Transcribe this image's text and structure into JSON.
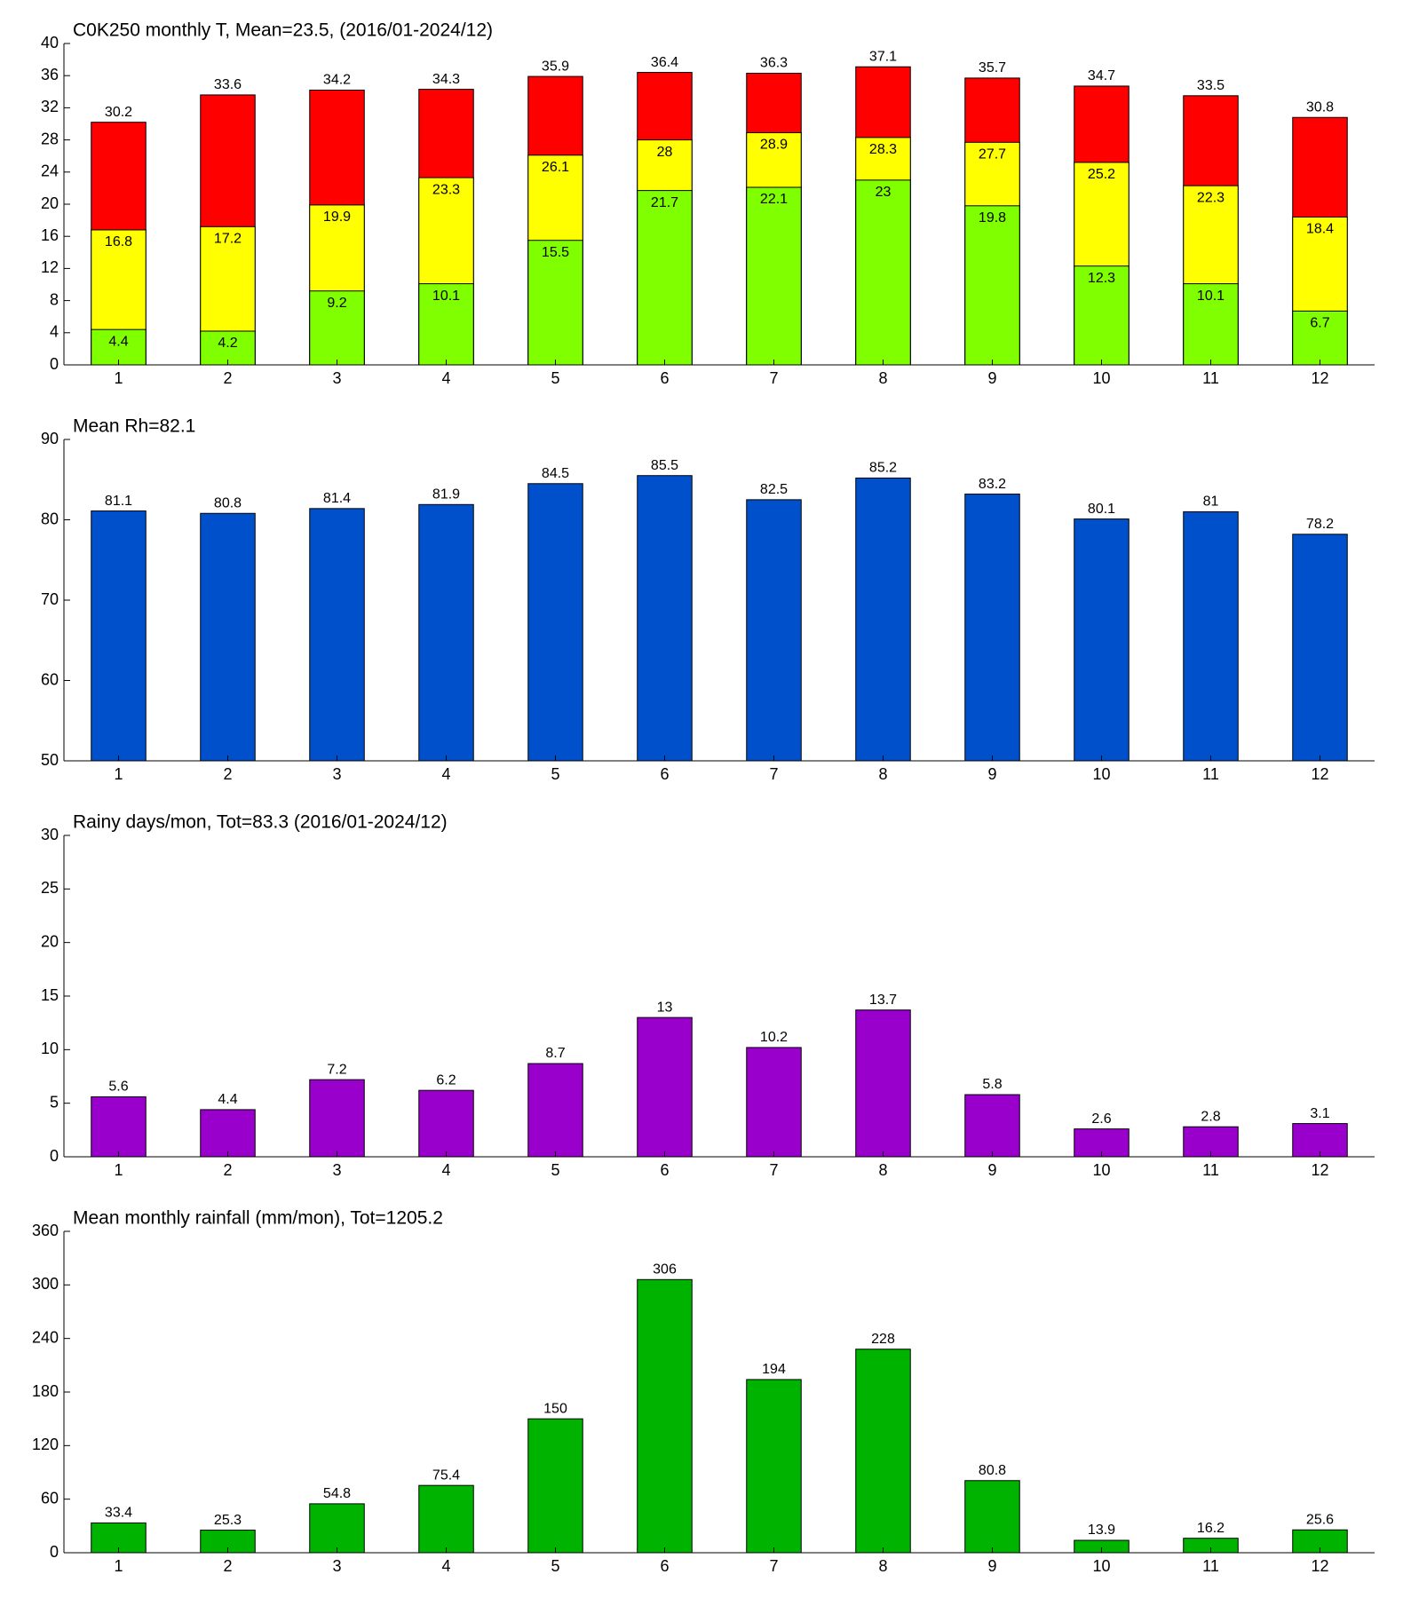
{
  "chart_data": [
    {
      "type": "bar",
      "title": "C0K250 monthly T, Mean=23.5, (2016/01-2024/12)",
      "categories": [
        1,
        2,
        3,
        4,
        5,
        6,
        7,
        8,
        9,
        10,
        11,
        12
      ],
      "series": [
        {
          "color": "#ff0000",
          "values": [
            30.2,
            33.6,
            34.2,
            34.3,
            35.9,
            36.4,
            36.3,
            37.1,
            35.7,
            34.7,
            33.5,
            30.8
          ]
        },
        {
          "color": "#ffff00",
          "values": [
            16.8,
            17.2,
            19.9,
            23.3,
            26.1,
            28,
            28.9,
            28.3,
            27.7,
            25.2,
            22.3,
            18.4
          ]
        },
        {
          "color": "#80ff00",
          "values": [
            4.4,
            4.2,
            9.2,
            10.1,
            15.5,
            21.7,
            22.1,
            23,
            19.8,
            12.3,
            10.1,
            6.7
          ]
        }
      ],
      "ylim": [
        0,
        40
      ],
      "yticks": [
        0,
        4,
        8,
        12,
        16,
        20,
        24,
        28,
        32,
        36,
        40
      ]
    },
    {
      "type": "bar",
      "title": "Mean Rh=82.1",
      "categories": [
        1,
        2,
        3,
        4,
        5,
        6,
        7,
        8,
        9,
        10,
        11,
        12
      ],
      "series": [
        {
          "color": "#0050cc",
          "values": [
            81.1,
            80.8,
            81.4,
            81.9,
            84.5,
            85.5,
            82.5,
            85.2,
            83.2,
            80.1,
            81,
            78.2
          ]
        }
      ],
      "ylim": [
        50,
        90
      ],
      "yticks": [
        50,
        60,
        70,
        80,
        90
      ]
    },
    {
      "type": "bar",
      "title": "Rainy days/mon, Tot=83.3 (2016/01-2024/12)",
      "categories": [
        1,
        2,
        3,
        4,
        5,
        6,
        7,
        8,
        9,
        10,
        11,
        12
      ],
      "series": [
        {
          "color": "#9900cc",
          "values": [
            5.6,
            4.4,
            7.2,
            6.2,
            8.7,
            13,
            10.2,
            13.7,
            5.8,
            2.6,
            2.8,
            3.1
          ]
        }
      ],
      "ylim": [
        0,
        30
      ],
      "yticks": [
        0,
        5,
        10,
        15,
        20,
        25,
        30
      ]
    },
    {
      "type": "bar",
      "title": "Mean monthly rainfall (mm/mon), Tot=1205.2",
      "categories": [
        1,
        2,
        3,
        4,
        5,
        6,
        7,
        8,
        9,
        10,
        11,
        12
      ],
      "series": [
        {
          "color": "#00b300",
          "values": [
            33.4,
            25.3,
            54.8,
            75.4,
            150,
            306,
            194,
            228,
            80.8,
            13.9,
            16.2,
            25.6
          ]
        }
      ],
      "ylim": [
        0,
        360
      ],
      "yticks": [
        0,
        60,
        120,
        180,
        240,
        300,
        360
      ]
    }
  ]
}
